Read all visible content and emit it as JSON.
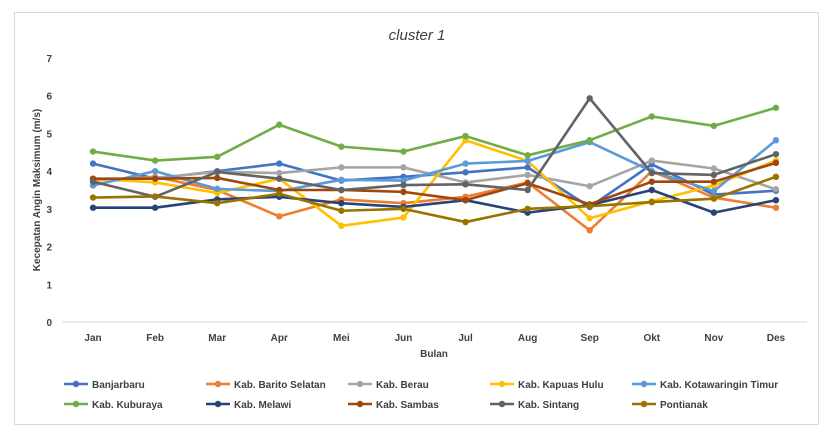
{
  "chart_data": {
    "type": "line",
    "title": "cluster 1",
    "xlabel": "Bulan",
    "ylabel": "Kecepatan Angin Maksimum (m/s)",
    "ylim": [
      0,
      7
    ],
    "yticks": [
      0,
      1,
      2,
      3,
      4,
      5,
      6,
      7
    ],
    "grid": false,
    "legend": "bottom",
    "categories": [
      "Jan",
      "Feb",
      "Mar",
      "Apr",
      "Mei",
      "Jun",
      "Jul",
      "Aug",
      "Sep",
      "Okt",
      "Nov",
      "Des"
    ],
    "series": [
      {
        "name": "Banjarbaru",
        "color": "#4472c4",
        "values": [
          4.2,
          3.8,
          4.0,
          4.2,
          3.75,
          3.85,
          3.97,
          4.1,
          3.05,
          4.18,
          3.38,
          3.48
        ]
      },
      {
        "name": "Kab. Barito Selatan",
        "color": "#ed7d31",
        "values": [
          3.75,
          3.85,
          3.5,
          2.8,
          3.25,
          3.15,
          3.32,
          3.7,
          2.43,
          4.0,
          3.3,
          3.03
        ]
      },
      {
        "name": "Kab. Berau",
        "color": "#a5a5a5",
        "values": [
          3.77,
          3.82,
          3.98,
          3.95,
          4.1,
          4.1,
          3.7,
          3.9,
          3.6,
          4.28,
          4.07,
          3.52
        ]
      },
      {
        "name": "Kab. Kapuas Hulu",
        "color": "#ffc000",
        "values": [
          3.8,
          3.7,
          3.42,
          3.8,
          2.55,
          2.77,
          4.82,
          4.27,
          2.75,
          3.2,
          3.62,
          4.28
        ]
      },
      {
        "name": "Kab. Kotawaringin Timur",
        "color": "#5b9bd5",
        "values": [
          3.62,
          4.0,
          3.53,
          3.47,
          3.77,
          3.75,
          4.2,
          4.27,
          4.77,
          4.0,
          3.47,
          4.82
        ]
      },
      {
        "name": "Kab. Kuburaya",
        "color": "#70ad47",
        "values": [
          4.52,
          4.28,
          4.38,
          5.23,
          4.65,
          4.52,
          4.93,
          4.42,
          4.82,
          5.45,
          5.2,
          5.68
        ]
      },
      {
        "name": "Kab. Melawi",
        "color": "#264478",
        "values": [
          3.03,
          3.03,
          3.25,
          3.32,
          3.15,
          3.05,
          3.23,
          2.9,
          3.1,
          3.5,
          2.9,
          3.23
        ]
      },
      {
        "name": "Kab. Sambas",
        "color": "#9e480e",
        "values": [
          3.8,
          3.8,
          3.82,
          3.5,
          3.5,
          3.45,
          3.23,
          3.68,
          3.12,
          3.72,
          3.72,
          4.22
        ]
      },
      {
        "name": "Kab. Sintang",
        "color": "#636363",
        "values": [
          3.72,
          3.32,
          3.98,
          3.8,
          3.5,
          3.63,
          3.65,
          3.5,
          5.93,
          3.95,
          3.9,
          4.45
        ]
      },
      {
        "name": "Pontianak",
        "color": "#997300",
        "values": [
          3.3,
          3.33,
          3.15,
          3.4,
          2.95,
          3.0,
          2.65,
          3.0,
          3.07,
          3.18,
          3.27,
          3.85
        ]
      }
    ]
  }
}
